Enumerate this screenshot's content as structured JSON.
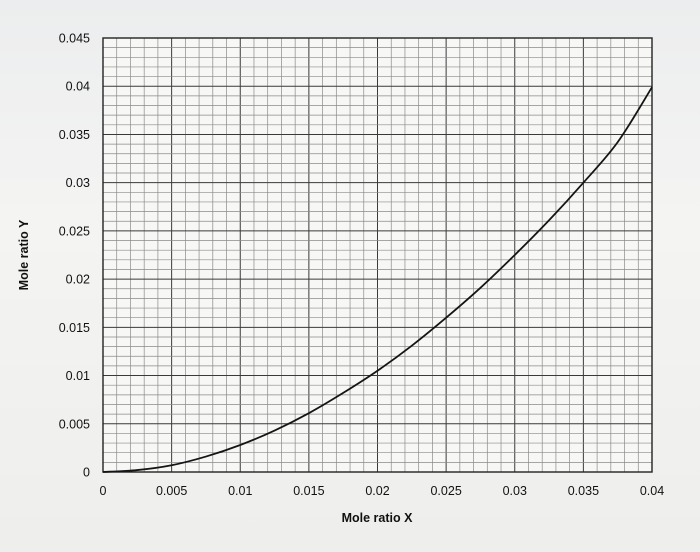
{
  "chart_data": {
    "type": "line",
    "xlabel": "Mole ratio X",
    "ylabel": "Mole ratio Y",
    "xlim": [
      0,
      0.04
    ],
    "ylim": [
      0,
      0.045
    ],
    "x_ticks": [
      "0",
      "0.005",
      "0.01",
      "0.015",
      "0.02",
      "0.025",
      "0.03",
      "0.035",
      "0.04"
    ],
    "y_ticks": [
      "0",
      "0.005",
      "0.01",
      "0.015",
      "0.02",
      "0.025",
      "0.03",
      "0.035",
      "0.04",
      "0.045"
    ],
    "grid": true,
    "series": [
      {
        "x": [
          0,
          0.0025,
          0.005,
          0.0075,
          0.01,
          0.0125,
          0.015,
          0.0175,
          0.02,
          0.0225,
          0.025,
          0.0275,
          0.03,
          0.0325,
          0.035,
          0.0375,
          0.04
        ],
        "y": [
          0,
          0.0002,
          0.0007,
          0.0016,
          0.0028,
          0.0043,
          0.0061,
          0.0082,
          0.0105,
          0.0131,
          0.016,
          0.0191,
          0.0225,
          0.0261,
          0.03,
          0.0342,
          0.0399
        ]
      }
    ],
    "colors": {
      "line": "#151515",
      "grid_minor": "#8a8a8a",
      "grid_major": "#3a3a3a"
    }
  }
}
